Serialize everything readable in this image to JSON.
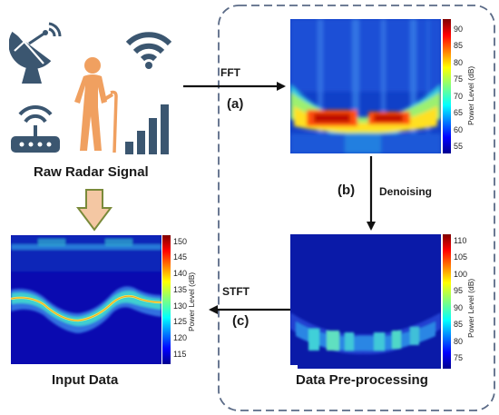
{
  "labels": {
    "raw_signal": "Raw Radar Signal",
    "input_data": "Input Data",
    "preprocessing": "Data Pre-processing",
    "fft": "FFT",
    "step_a": "(a)",
    "step_b": "(b)",
    "denoising": "Denoising",
    "stft": "STFT",
    "step_c": "(c)"
  },
  "icons": [
    "satellite-dish-icon",
    "wifi-icon",
    "elderly-person-icon",
    "router-icon",
    "signal-bars-icon"
  ],
  "colors": {
    "icon_blue": "#3b5670",
    "person_orange": "#f0a060",
    "arrow_fill": "#f4c7a3",
    "arrow_stroke": "#7a8a3a",
    "dash_border": "#5a6a86"
  },
  "chart_data": [
    {
      "type": "heatmap",
      "id": "fft-spectrogram",
      "colorbar": {
        "title": "Power Level (dB)",
        "ticks": [
          55,
          60,
          65,
          70,
          75,
          80,
          85,
          90
        ],
        "range": [
          53,
          93
        ]
      }
    },
    {
      "type": "heatmap",
      "id": "denoised-spectrogram",
      "colorbar": {
        "title": "Power Level (dB)",
        "ticks": [
          75,
          80,
          85,
          90,
          95,
          100,
          105,
          110
        ],
        "range": [
          72,
          112
        ]
      }
    },
    {
      "type": "heatmap",
      "id": "input-spectrogram",
      "colorbar": {
        "title": "Power Level (dB)",
        "ticks": [
          115,
          120,
          125,
          130,
          135,
          140,
          145,
          150
        ],
        "range": [
          112,
          152
        ]
      }
    }
  ]
}
